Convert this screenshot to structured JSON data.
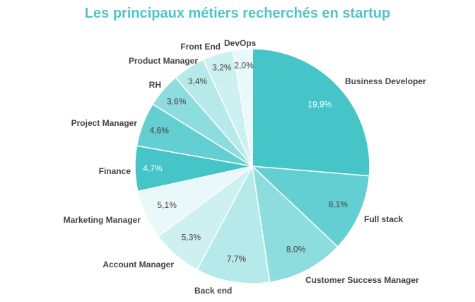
{
  "chart_data": {
    "type": "pie",
    "title": "Les principaux métiers recherchés en startup",
    "slices": [
      {
        "label": "Business Developer",
        "value": 19.9,
        "value_label": "19,9%",
        "color": "#46c5c9",
        "value_color": "#ffffff"
      },
      {
        "label": "Full stack",
        "value": 8.1,
        "value_label": "8,1%",
        "color": "#63cfd2",
        "value_color": "#444444"
      },
      {
        "label": "Customer Success Manager",
        "value": 8.0,
        "value_label": "8,0%",
        "color": "#8ddcde",
        "value_color": "#444444"
      },
      {
        "label": "Back end",
        "value": 7.7,
        "value_label": "7,7%",
        "color": "#b6e9ea",
        "value_color": "#444444"
      },
      {
        "label": "Account Manager",
        "value": 5.3,
        "value_label": "5,3%",
        "color": "#cdf0f1",
        "value_color": "#444444"
      },
      {
        "label": "Marketing Manager",
        "value": 5.1,
        "value_label": "5,1%",
        "color": "#e9f8f8",
        "value_color": "#444444"
      },
      {
        "label": "Finance",
        "value": 4.7,
        "value_label": "4,7%",
        "color": "#46c5c9",
        "value_color": "#ffffff"
      },
      {
        "label": "Project Manager",
        "value": 4.6,
        "value_label": "4,6%",
        "color": "#63cfd2",
        "value_color": "#444444"
      },
      {
        "label": "RH",
        "value": 3.6,
        "value_label": "3,6%",
        "color": "#8ddcde",
        "value_color": "#444444"
      },
      {
        "label": "Product Manager",
        "value": 3.4,
        "value_label": "3,4%",
        "color": "#b6e9ea",
        "value_color": "#444444"
      },
      {
        "label": "Front End",
        "value": 3.2,
        "value_label": "3,2%",
        "color": "#cdf0f1",
        "value_color": "#444444"
      },
      {
        "label": "DevOps",
        "value": 2.0,
        "value_label": "2,0%",
        "color": "#e9f8f8",
        "value_color": "#444444"
      }
    ]
  }
}
